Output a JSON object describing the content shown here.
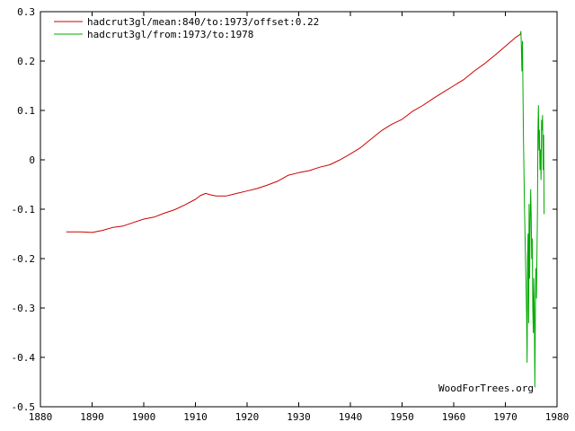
{
  "chart_data": {
    "type": "line",
    "xlim": [
      1880,
      1980
    ],
    "ylim": [
      -0.5,
      0.3
    ],
    "x_ticks": [
      "1880",
      "1890",
      "1900",
      "1910",
      "1920",
      "1930",
      "1940",
      "1950",
      "1960",
      "1970",
      "1980"
    ],
    "y_ticks": [
      "0.3",
      "0.2",
      "0.1",
      "0",
      "-0.1",
      "-0.2",
      "-0.3",
      "-0.4",
      "-0.5"
    ],
    "grid": false,
    "legend_position": "top-left",
    "watermark": "WoodForTrees.org",
    "series": [
      {
        "name": "hadcrut3gl/mean:840/to:1973/offset:0.22",
        "color": "#cc0000",
        "x": [
          1885,
          1888,
          1890,
          1892,
          1894,
          1896,
          1898,
          1900,
          1902,
          1904,
          1906,
          1908,
          1910,
          1911,
          1912,
          1913,
          1914,
          1916,
          1918,
          1920,
          1922,
          1924,
          1926,
          1928,
          1930,
          1932,
          1934,
          1936,
          1938,
          1940,
          1942,
          1944,
          1946,
          1948,
          1950,
          1952,
          1954,
          1956,
          1958,
          1960,
          1962,
          1964,
          1966,
          1968,
          1970,
          1972,
          1973
        ],
        "y": [
          -0.146,
          -0.146,
          -0.147,
          -0.143,
          -0.137,
          -0.134,
          -0.127,
          -0.12,
          -0.116,
          -0.108,
          -0.101,
          -0.091,
          -0.08,
          -0.072,
          -0.068,
          -0.071,
          -0.073,
          -0.073,
          -0.068,
          -0.063,
          -0.058,
          -0.051,
          -0.043,
          -0.031,
          -0.026,
          -0.022,
          -0.015,
          -0.01,
          0.0,
          0.012,
          0.025,
          0.042,
          0.059,
          0.072,
          0.082,
          0.098,
          0.11,
          0.124,
          0.137,
          0.15,
          0.163,
          0.18,
          0.195,
          0.212,
          0.23,
          0.248,
          0.255
        ]
      },
      {
        "name": "hadcrut3gl/from:1973/to:1978",
        "color": "#00aa00",
        "x": [
          1972.9,
          1973.0,
          1973.1,
          1973.2,
          1973.3,
          1973.5,
          1973.7,
          1973.9,
          1974.1,
          1974.2,
          1974.3,
          1974.4,
          1974.5,
          1974.6,
          1974.7,
          1974.8,
          1974.9,
          1975.0,
          1975.1,
          1975.2,
          1975.3,
          1975.4,
          1975.5,
          1975.6,
          1975.7,
          1975.8,
          1975.9,
          1976.0,
          1976.1,
          1976.2,
          1976.3,
          1976.4,
          1976.5,
          1976.6,
          1976.7,
          1976.8,
          1976.9,
          1977.0,
          1977.1,
          1977.2,
          1977.3,
          1977.4,
          1977.5
        ],
        "y": [
          0.255,
          0.26,
          0.23,
          0.18,
          0.24,
          0.05,
          -0.1,
          -0.2,
          -0.31,
          -0.41,
          -0.2,
          -0.15,
          -0.33,
          -0.09,
          -0.24,
          -0.12,
          -0.06,
          -0.12,
          -0.2,
          -0.16,
          -0.3,
          -0.35,
          -0.24,
          -0.3,
          -0.46,
          -0.33,
          -0.22,
          -0.28,
          -0.2,
          -0.11,
          0.05,
          0.11,
          0.02,
          0.06,
          -0.02,
          0.02,
          -0.04,
          0.08,
          0.06,
          0.09,
          -0.02,
          0.05,
          -0.11
        ]
      }
    ]
  }
}
